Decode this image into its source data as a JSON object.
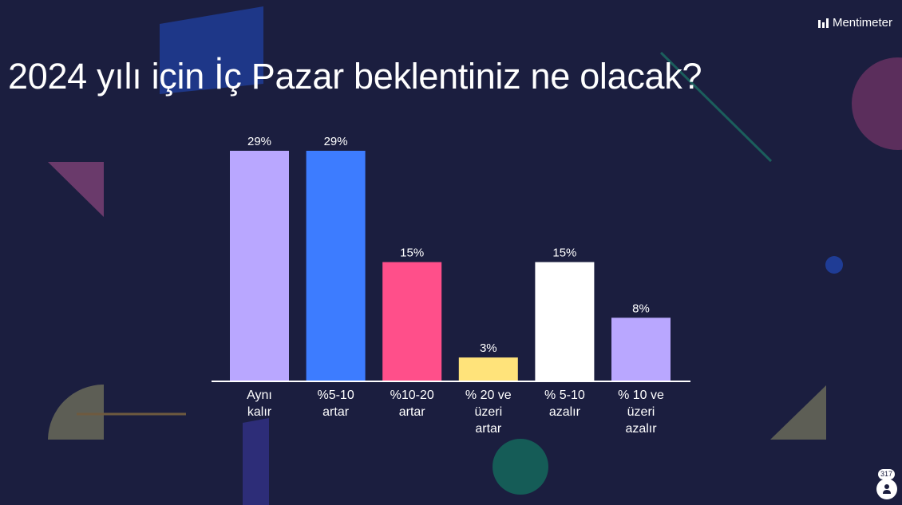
{
  "presentation": {
    "title": "2024 yılı için İç Pazar beklentiniz ne olacak?",
    "brand": "Mentimeter",
    "participant_count": "317",
    "participant_icon": "person-icon"
  },
  "chart_data": {
    "type": "bar",
    "title": "2024 yılı için İç Pazar beklentiniz ne olacak?",
    "xlabel": "",
    "ylabel": "",
    "categories": [
      [
        "Aynı",
        "kalır"
      ],
      [
        "%5-10",
        "artar"
      ],
      [
        "%10-20",
        "artar"
      ],
      [
        "% 20 ve",
        "üzeri",
        "artar"
      ],
      [
        "% 5-10",
        "azalır"
      ],
      [
        "% 10 ve",
        "üzeri",
        "azalır"
      ]
    ],
    "values": [
      29,
      29,
      15,
      3,
      15,
      8
    ],
    "value_labels": [
      "29%",
      "29%",
      "15%",
      "3%",
      "15%",
      "8%"
    ],
    "colors": [
      "#b9a7ff",
      "#3d7cff",
      "#ff4f8a",
      "#ffe37a",
      "#ffffff",
      "#b9a7ff"
    ],
    "ylim": [
      0,
      29
    ],
    "grid": false,
    "legend": "none"
  }
}
